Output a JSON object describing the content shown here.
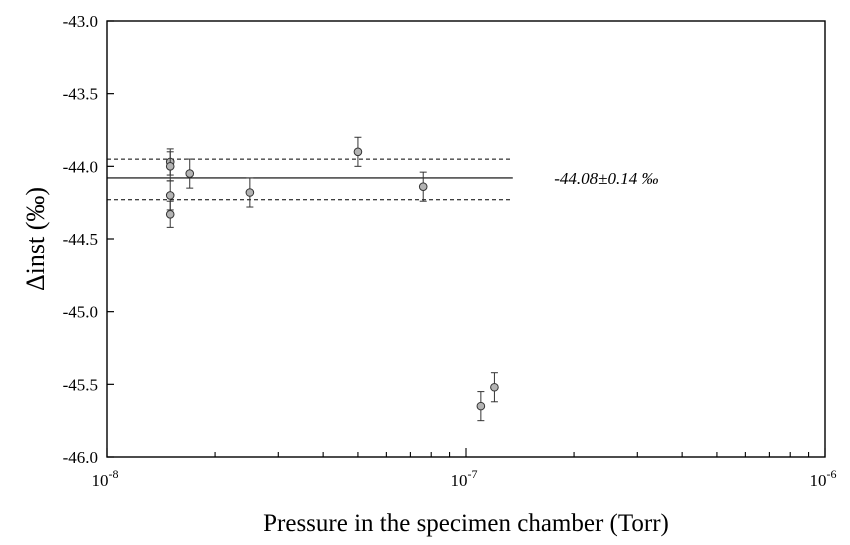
{
  "chart_data": {
    "type": "scatter",
    "title": "",
    "xlabel": "Pressure in the specimen chamber (Torr)",
    "ylabel": "Δinst (‰)",
    "x_scale": "log",
    "xlim": [
      1e-08,
      1e-06
    ],
    "ylim": [
      -46.0,
      -43.0
    ],
    "x_ticks": [
      {
        "value": 1e-08,
        "base": "10",
        "exp": "-8"
      },
      {
        "value": 1e-07,
        "base": "10",
        "exp": "-7"
      },
      {
        "value": 1e-06,
        "base": "10",
        "exp": "-6"
      }
    ],
    "y_ticks": [
      {
        "value": -43.0,
        "label": "-43.0"
      },
      {
        "value": -43.5,
        "label": "-43.5"
      },
      {
        "value": -44.0,
        "label": "-44.0"
      },
      {
        "value": -44.5,
        "label": "-44.5"
      },
      {
        "value": -45.0,
        "label": "-45.0"
      },
      {
        "value": -45.5,
        "label": "-45.5"
      },
      {
        "value": -46.0,
        "label": "-46.0"
      }
    ],
    "grid": false,
    "points": [
      {
        "x": 1.5e-08,
        "y": -43.97,
        "err": 0.09
      },
      {
        "x": 1.5e-08,
        "y": -44.0,
        "err": 0.1
      },
      {
        "x": 1.5e-08,
        "y": -44.2,
        "err": 0.1
      },
      {
        "x": 1.5e-08,
        "y": -44.33,
        "err": 0.09
      },
      {
        "x": 1.7e-08,
        "y": -44.05,
        "err": 0.1
      },
      {
        "x": 2.5e-08,
        "y": -44.18,
        "err": 0.1
      },
      {
        "x": 5e-08,
        "y": -43.9,
        "err": 0.1
      },
      {
        "x": 7.6e-08,
        "y": -44.14,
        "err": 0.1
      },
      {
        "x": 1.1e-07,
        "y": -45.65,
        "err": 0.1
      },
      {
        "x": 1.2e-07,
        "y": -45.52,
        "err": 0.1
      }
    ],
    "mean_line": {
      "y": -44.08,
      "x_range": [
        1e-08,
        1.35e-07
      ]
    },
    "band_lines": [
      {
        "y": -43.95,
        "x_range": [
          1e-08,
          1.35e-07
        ],
        "style": "dashed"
      },
      {
        "y": -44.23,
        "x_range": [
          1e-08,
          1.35e-07
        ],
        "style": "dashed"
      }
    ],
    "annotation": {
      "text": "-44.08±0.14 ‰",
      "x": 1.5e-07,
      "y": -44.08
    },
    "colors": {
      "marker_fill": "#b3b3b3",
      "marker_stroke": "#333333",
      "line": "#000000"
    }
  }
}
